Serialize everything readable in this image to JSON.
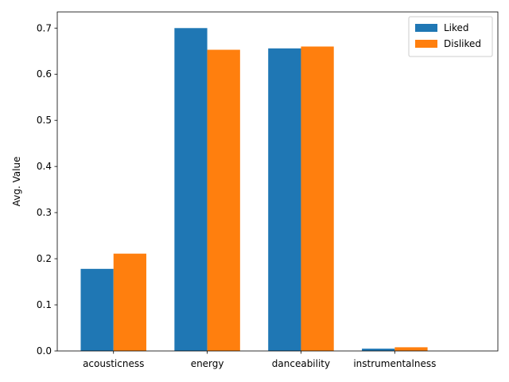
{
  "chart_data": {
    "type": "bar",
    "title": "",
    "xlabel": "",
    "ylabel": "Avg. Value",
    "categories": [
      "acousticness",
      "energy",
      "danceability",
      "instrumentalness"
    ],
    "series": [
      {
        "name": "Liked",
        "color": "#1f77b4",
        "values": [
          0.178,
          0.7,
          0.656,
          0.005
        ]
      },
      {
        "name": "Disliked",
        "color": "#ff7f0e",
        "values": [
          0.211,
          0.653,
          0.66,
          0.008
        ]
      }
    ],
    "ylim": [
      0,
      0.735
    ],
    "yticks": [
      "0.0",
      "0.1",
      "0.2",
      "0.3",
      "0.4",
      "0.5",
      "0.6",
      "0.7"
    ],
    "grid": false,
    "legend": "top-right"
  }
}
